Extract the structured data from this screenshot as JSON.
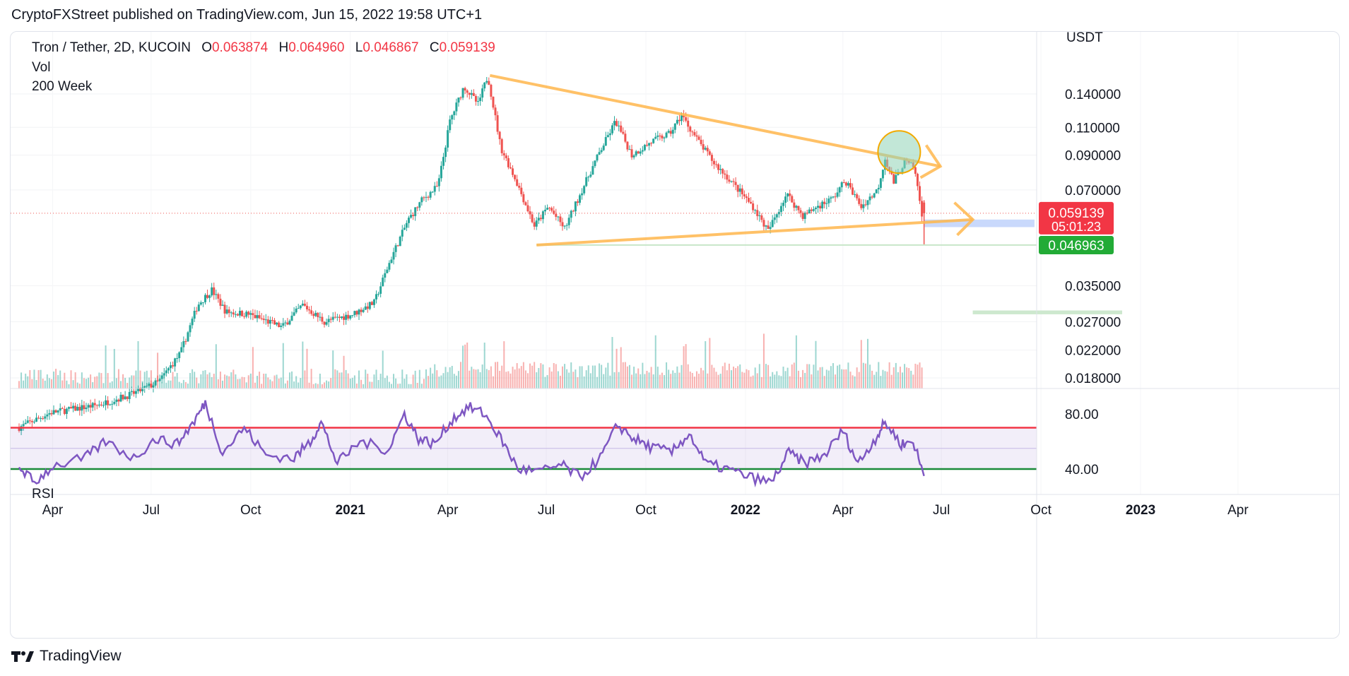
{
  "publish_line": "CryptoFXStreet published on TradingView.com, Jun 15, 2022 19:58 UTC+1",
  "footer_brand": "TradingView",
  "legend": {
    "symbol": "Tron / Tether, 2D, KUCOIN",
    "open_label": "O",
    "open": "0.063874",
    "high_label": "H",
    "high": "0.064960",
    "low_label": "L",
    "low": "0.046867",
    "close_label": "C",
    "close": "0.059139",
    "vol_label": "Vol",
    "ma_label": "200 Week"
  },
  "rsi_label": "RSI",
  "colors": {
    "up": "#26a69a",
    "down": "#ef5350",
    "trend": "#ffb74d",
    "rsi": "#7e57c2",
    "rsi_upper": "#f23645",
    "rsi_lower": "#1b8a3a",
    "price_badge": "#f23645",
    "support_badge": "#22ab36"
  },
  "chart_data": {
    "type": "candlestick",
    "pair": "TRX/USDT",
    "exchange": "KUCOIN",
    "timeframe": "2D",
    "y_axis_unit": "USDT",
    "y_scale": "log",
    "y_ticks": [
      "0.140000",
      "0.110000",
      "0.090000",
      "0.070000",
      "0.035000",
      "0.027000",
      "0.022000",
      "0.018000"
    ],
    "x_ticks": [
      "Apr",
      "Jul",
      "Oct",
      "2021",
      "Apr",
      "Jul",
      "Oct",
      "2022",
      "Apr",
      "Jul",
      "Oct",
      "2023",
      "Apr"
    ],
    "x_tick_bold": [
      false,
      false,
      false,
      true,
      false,
      false,
      false,
      true,
      false,
      false,
      false,
      true,
      false
    ],
    "current_price": "0.059139",
    "countdown": "05:01:23",
    "support_price": "0.046963",
    "ohlc_last": {
      "open": 0.063874,
      "high": 0.06496,
      "low": 0.046867,
      "close": 0.059139
    },
    "price_path": [
      [
        "2020-03-01",
        0.0125
      ],
      [
        "2020-04-01",
        0.014
      ],
      [
        "2020-05-15",
        0.0148
      ],
      [
        "2020-06-15",
        0.016
      ],
      [
        "2020-07-10",
        0.0175
      ],
      [
        "2020-07-30",
        0.0215
      ],
      [
        "2020-08-15",
        0.0305
      ],
      [
        "2020-08-28",
        0.034
      ],
      [
        "2020-09-10",
        0.029
      ],
      [
        "2020-10-01",
        0.0285
      ],
      [
        "2020-11-01",
        0.026
      ],
      [
        "2020-11-20",
        0.0305
      ],
      [
        "2020-12-10",
        0.027
      ],
      [
        "2021-01-05",
        0.0285
      ],
      [
        "2021-01-25",
        0.031
      ],
      [
        "2021-02-10",
        0.043
      ],
      [
        "2021-02-25",
        0.056
      ],
      [
        "2021-03-10",
        0.065
      ],
      [
        "2021-03-25",
        0.072
      ],
      [
        "2021-04-05",
        0.115
      ],
      [
        "2021-04-18",
        0.148
      ],
      [
        "2021-05-01",
        0.13
      ],
      [
        "2021-05-10",
        0.16
      ],
      [
        "2021-05-22",
        0.095
      ],
      [
        "2021-06-05",
        0.075
      ],
      [
        "2021-06-22",
        0.054
      ],
      [
        "2021-07-05",
        0.062
      ],
      [
        "2021-07-20",
        0.053
      ],
      [
        "2021-08-05",
        0.07
      ],
      [
        "2021-08-20",
        0.09
      ],
      [
        "2021-09-05",
        0.115
      ],
      [
        "2021-09-20",
        0.09
      ],
      [
        "2021-10-10",
        0.1
      ],
      [
        "2021-10-25",
        0.105
      ],
      [
        "2021-11-05",
        0.12
      ],
      [
        "2021-11-20",
        0.1
      ],
      [
        "2021-12-05",
        0.085
      ],
      [
        "2021-12-20",
        0.075
      ],
      [
        "2022-01-10",
        0.062
      ],
      [
        "2022-01-24",
        0.052
      ],
      [
        "2022-02-10",
        0.068
      ],
      [
        "2022-02-25",
        0.058
      ],
      [
        "2022-03-10",
        0.062
      ],
      [
        "2022-03-25",
        0.066
      ],
      [
        "2022-04-05",
        0.075
      ],
      [
        "2022-04-20",
        0.062
      ],
      [
        "2022-05-05",
        0.07
      ],
      [
        "2022-05-12",
        0.088
      ],
      [
        "2022-05-20",
        0.074
      ],
      [
        "2022-05-30",
        0.086
      ],
      [
        "2022-06-08",
        0.082
      ],
      [
        "2022-06-15",
        0.0591
      ]
    ],
    "rsi": {
      "y_ticks": [
        "80.00",
        "40.00"
      ],
      "upper_band": 70,
      "lower_band": 40,
      "path": [
        [
          "2020-03-01",
          42
        ],
        [
          "2020-03-15",
          30
        ],
        [
          "2020-04-01",
          42
        ],
        [
          "2020-05-01",
          48
        ],
        [
          "2020-05-20",
          60
        ],
        [
          "2020-06-15",
          48
        ],
        [
          "2020-07-05",
          62
        ],
        [
          "2020-07-25",
          58
        ],
        [
          "2020-08-10",
          75
        ],
        [
          "2020-08-20",
          88
        ],
        [
          "2020-09-05",
          52
        ],
        [
          "2020-09-25",
          70
        ],
        [
          "2020-10-15",
          50
        ],
        [
          "2020-11-10",
          48
        ],
        [
          "2020-11-25",
          60
        ],
        [
          "2020-12-05",
          74
        ],
        [
          "2020-12-20",
          44
        ],
        [
          "2021-01-10",
          60
        ],
        [
          "2021-02-05",
          54
        ],
        [
          "2021-02-20",
          80
        ],
        [
          "2021-03-05",
          62
        ],
        [
          "2021-03-20",
          58
        ],
        [
          "2021-04-05",
          76
        ],
        [
          "2021-04-20",
          85
        ],
        [
          "2021-05-05",
          80
        ],
        [
          "2021-05-20",
          62
        ],
        [
          "2021-06-05",
          40
        ],
        [
          "2021-06-25",
          38
        ],
        [
          "2021-07-15",
          43
        ],
        [
          "2021-08-01",
          34
        ],
        [
          "2021-08-20",
          48
        ],
        [
          "2021-09-05",
          72
        ],
        [
          "2021-09-20",
          62
        ],
        [
          "2021-10-05",
          56
        ],
        [
          "2021-10-25",
          52
        ],
        [
          "2021-11-10",
          66
        ],
        [
          "2021-11-25",
          44
        ],
        [
          "2021-12-15",
          40
        ],
        [
          "2022-01-05",
          34
        ],
        [
          "2022-01-25",
          30
        ],
        [
          "2022-02-10",
          52
        ],
        [
          "2022-02-25",
          44
        ],
        [
          "2022-03-15",
          50
        ],
        [
          "2022-04-01",
          68
        ],
        [
          "2022-04-15",
          44
        ],
        [
          "2022-05-01",
          62
        ],
        [
          "2022-05-10",
          74
        ],
        [
          "2022-05-25",
          58
        ],
        [
          "2022-06-05",
          60
        ],
        [
          "2022-06-15",
          35
        ]
      ]
    },
    "annotations": {
      "descending_trendline": [
        [
          "2021-05-10",
          0.16
        ],
        [
          "2022-06-30",
          0.083
        ]
      ],
      "ascending_trendline": [
        [
          "2021-06-22",
          0.047
        ],
        [
          "2022-07-30",
          0.0565
        ]
      ],
      "support_line": [
        [
          "2021-06-22",
          0.047
        ],
        [
          "2022-06-15",
          0.047
        ]
      ],
      "demand_zone_blue": {
        "x": [
          "2022-06-15",
          "2022-09-25"
        ],
        "y": [
          0.0535,
          0.0565
        ]
      },
      "demand_zone_green": {
        "x": [
          "2022-07-30",
          "2022-12-15"
        ],
        "y": [
          0.0285,
          0.0293
        ]
      },
      "highlight_circle": {
        "x": "2022-05-23",
        "y": 0.092
      }
    }
  }
}
